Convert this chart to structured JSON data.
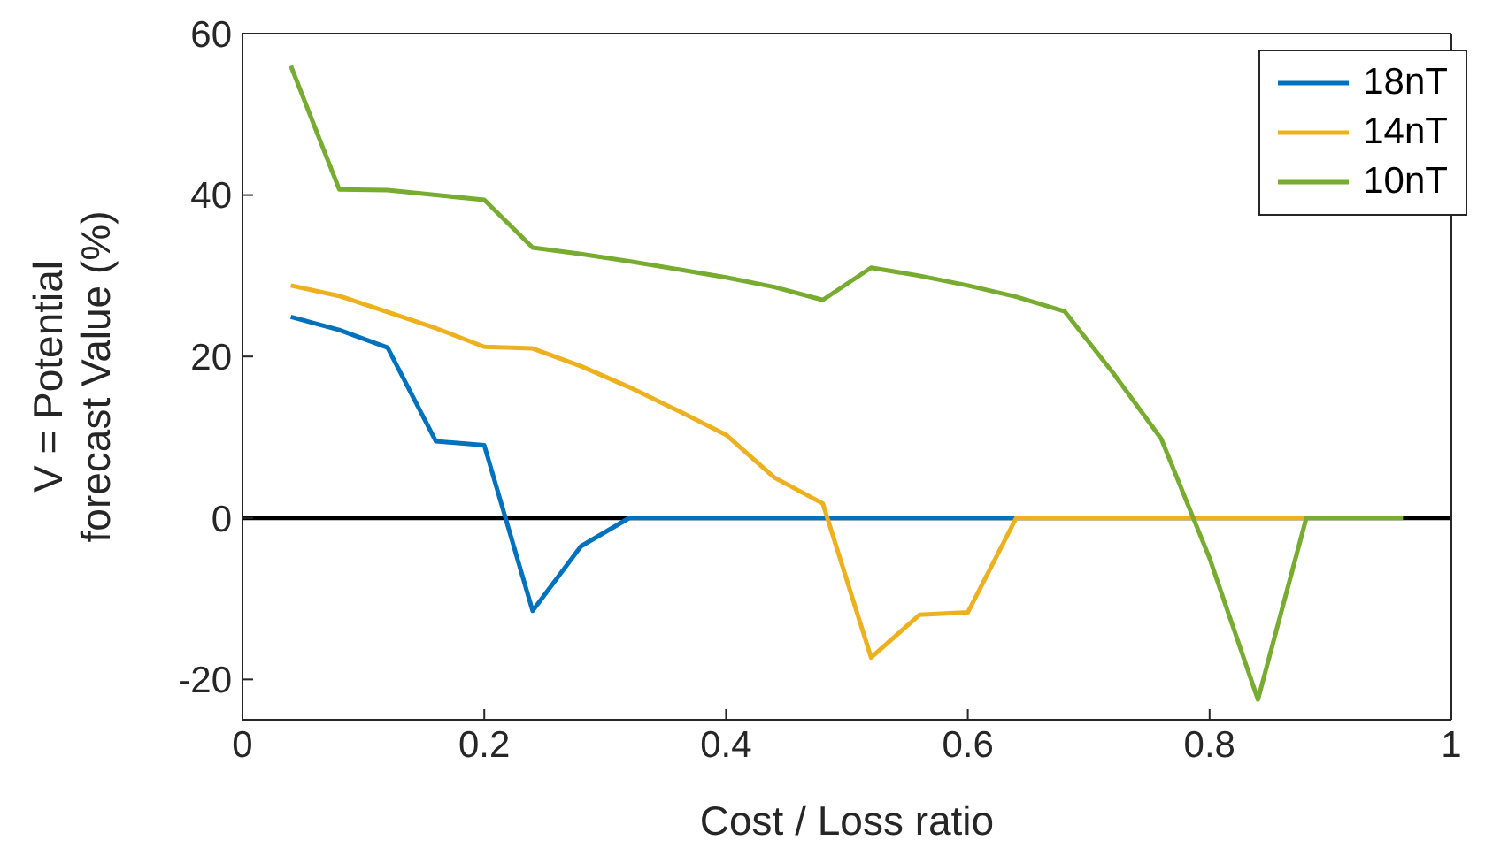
{
  "chart_data": {
    "type": "line",
    "xlabel": "Cost / Loss ratio",
    "ylabel": "V = Potential\nforecast Value (%)",
    "xlim": [
      0,
      1
    ],
    "xticks": [
      0,
      0.2,
      0.4,
      0.6,
      0.8,
      1
    ],
    "ylim": [
      -25,
      60
    ],
    "yticks": [
      -20,
      0,
      20,
      40,
      60
    ],
    "legend": "top right",
    "marker": "none",
    "line_style": "solid",
    "ref_lines": [
      {
        "axis": "y",
        "value": 0,
        "color": "#000000"
      }
    ],
    "series": [
      {
        "name": "18nT",
        "color": "#0072bd",
        "x": [
          0.04,
          0.08,
          0.12,
          0.16,
          0.2,
          0.24,
          0.28,
          0.32,
          0.36,
          0.4,
          0.44,
          0.48,
          0.52,
          0.56,
          0.6,
          0.64
        ],
        "values": [
          24.9,
          23.3,
          21.1,
          9.5,
          9.0,
          -11.5,
          -3.5,
          0,
          0,
          0,
          0,
          0,
          0,
          0,
          0,
          0
        ]
      },
      {
        "name": "14nT",
        "color": "#edb120",
        "x": [
          0.04,
          0.08,
          0.12,
          0.16,
          0.2,
          0.24,
          0.28,
          0.32,
          0.36,
          0.4,
          0.44,
          0.48,
          0.52,
          0.56,
          0.6,
          0.64,
          0.68,
          0.72,
          0.76,
          0.8,
          0.84,
          0.88
        ],
        "values": [
          28.8,
          27.5,
          25.5,
          23.5,
          21.2,
          21.0,
          18.8,
          16.2,
          13.3,
          10.3,
          5.0,
          1.8,
          -17.3,
          -12.0,
          -11.7,
          0,
          0,
          0,
          0,
          0,
          0,
          0
        ]
      },
      {
        "name": "10nT",
        "color": "#77ac30",
        "x": [
          0.04,
          0.08,
          0.12,
          0.16,
          0.2,
          0.24,
          0.28,
          0.32,
          0.36,
          0.4,
          0.44,
          0.48,
          0.52,
          0.56,
          0.6,
          0.64,
          0.68,
          0.72,
          0.76,
          0.8,
          0.84,
          0.88,
          0.92,
          0.96
        ],
        "values": [
          56.0,
          40.7,
          40.6,
          40.0,
          39.4,
          33.5,
          32.7,
          31.8,
          30.8,
          29.8,
          28.6,
          27.0,
          31.0,
          30.0,
          28.8,
          27.4,
          25.6,
          18.0,
          9.8,
          -5.0,
          -22.5,
          0,
          0,
          0
        ]
      }
    ]
  }
}
